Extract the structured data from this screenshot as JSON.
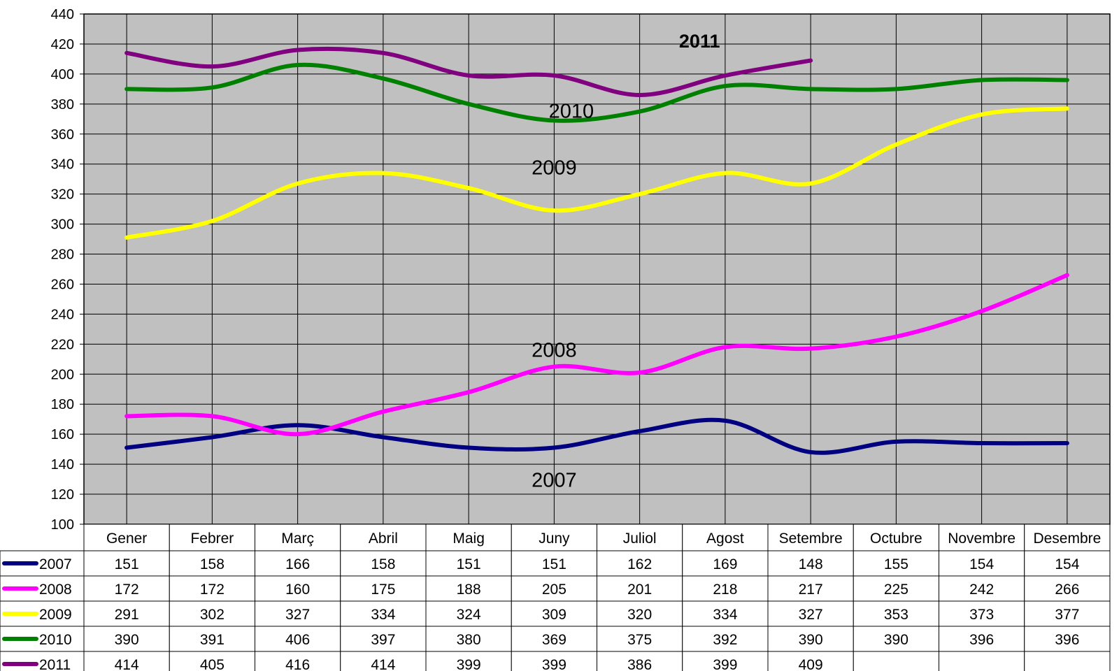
{
  "chart_data": {
    "type": "line",
    "categories": [
      "Gener",
      "Febrer",
      "Març",
      "Abril",
      "Maig",
      "Juny",
      "Juliol",
      "Agost",
      "Setembre",
      "Octubre",
      "Novembre",
      "Desembre"
    ],
    "series": [
      {
        "name": "2007",
        "color": "#000080",
        "values": [
          151,
          158,
          166,
          158,
          151,
          151,
          162,
          169,
          148,
          155,
          154,
          154
        ]
      },
      {
        "name": "2008",
        "color": "#FF00FF",
        "values": [
          172,
          172,
          160,
          175,
          188,
          205,
          201,
          218,
          217,
          225,
          242,
          266
        ]
      },
      {
        "name": "2009",
        "color": "#FFFF00",
        "values": [
          291,
          302,
          327,
          334,
          324,
          309,
          320,
          334,
          327,
          353,
          373,
          377
        ]
      },
      {
        "name": "2010",
        "color": "#008000",
        "values": [
          390,
          391,
          406,
          397,
          380,
          369,
          375,
          392,
          390,
          390,
          396,
          396
        ]
      },
      {
        "name": "2011",
        "color": "#800080",
        "values": [
          414,
          405,
          416,
          414,
          399,
          399,
          386,
          399,
          409,
          null,
          null,
          null
        ]
      }
    ],
    "ylim": [
      100,
      440
    ],
    "ytick_step": 20,
    "grid": true,
    "plot_background": "#C0C0C0",
    "legend": "data-table-below",
    "annotations": [
      {
        "text": "2011",
        "series": "2011",
        "bold": true
      },
      {
        "text": "2010",
        "series": "2010",
        "bold": false
      },
      {
        "text": "2009",
        "series": "2009",
        "bold": false
      },
      {
        "text": "2008",
        "series": "2008",
        "bold": false
      },
      {
        "text": "2007",
        "series": "2007",
        "bold": false
      }
    ]
  }
}
